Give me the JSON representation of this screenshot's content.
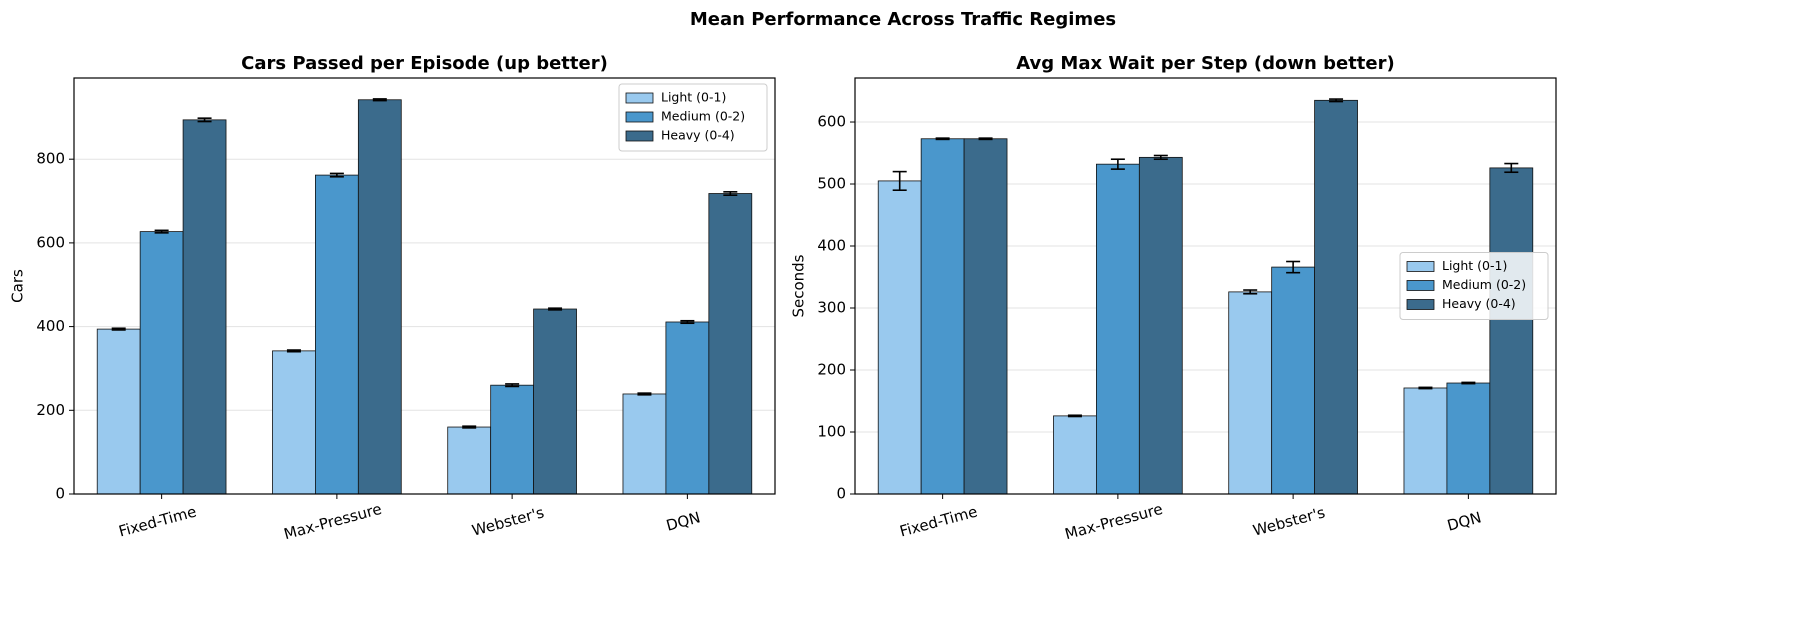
{
  "title": "Mean Performance Across Traffic Regimes",
  "chart_data": [
    {
      "type": "bar",
      "title": "Cars Passed per Episode (up better)",
      "ylabel": "Cars",
      "categories": [
        "Fixed-Time",
        "Max-Pressure",
        "Webster's",
        "DQN"
      ],
      "series": [
        {
          "name": "Light (0-1)",
          "color": "#99c9ee",
          "values": [
            394,
            342,
            160,
            239
          ],
          "errors": [
            2,
            2,
            2,
            2
          ]
        },
        {
          "name": "Medium (0-2)",
          "color": "#4a97cc",
          "values": [
            627,
            762,
            260,
            411
          ],
          "errors": [
            3,
            4,
            3,
            3
          ]
        },
        {
          "name": "Heavy (0-4)",
          "color": "#3b6b8c",
          "values": [
            894,
            942,
            442,
            718
          ],
          "errors": [
            4,
            2,
            2,
            4
          ]
        }
      ],
      "ylim": [
        0,
        994
      ],
      "yticks": [
        0,
        200,
        400,
        600,
        800
      ],
      "grid": true,
      "legend": "upper right"
    },
    {
      "type": "bar",
      "title": "Avg Max Wait per Step (down better)",
      "ylabel": "Seconds",
      "categories": [
        "Fixed-Time",
        "Max-Pressure",
        "Webster's",
        "DQN"
      ],
      "series": [
        {
          "name": "Light (0-1)",
          "color": "#99c9ee",
          "values": [
            505,
            126,
            326,
            171
          ],
          "errors": [
            15,
            1,
            3,
            1
          ]
        },
        {
          "name": "Medium (0-2)",
          "color": "#4a97cc",
          "values": [
            573,
            532,
            366,
            179
          ],
          "errors": [
            1,
            8,
            9,
            1
          ]
        },
        {
          "name": "Heavy (0-4)",
          "color": "#3b6b8c",
          "values": [
            573,
            543,
            635,
            526
          ],
          "errors": [
            1,
            3,
            2,
            7
          ]
        }
      ],
      "ylim": [
        0,
        671
      ],
      "yticks": [
        0,
        100,
        200,
        300,
        400,
        500,
        600
      ],
      "grid": true,
      "legend": "center right"
    }
  ]
}
